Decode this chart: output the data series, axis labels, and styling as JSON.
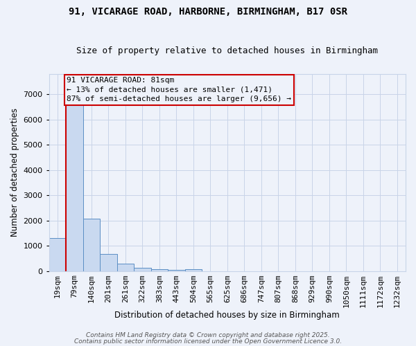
{
  "title1": "91, VICARAGE ROAD, HARBORNE, BIRMINGHAM, B17 0SR",
  "title2": "Size of property relative to detached houses in Birmingham",
  "xlabel": "Distribution of detached houses by size in Birmingham",
  "ylabel": "Number of detached properties",
  "categories": [
    "19sqm",
    "79sqm",
    "140sqm",
    "201sqm",
    "261sqm",
    "322sqm",
    "383sqm",
    "443sqm",
    "504sqm",
    "565sqm",
    "625sqm",
    "686sqm",
    "747sqm",
    "807sqm",
    "868sqm",
    "929sqm",
    "990sqm",
    "1050sqm",
    "1111sqm",
    "1172sqm",
    "1232sqm"
  ],
  "values": [
    1320,
    6650,
    2090,
    670,
    300,
    130,
    80,
    55,
    70,
    0,
    0,
    0,
    0,
    0,
    0,
    0,
    0,
    0,
    0,
    0,
    0
  ],
  "bar_color": "#c9d9f0",
  "bar_edge_color": "#5b8ec4",
  "grid_color": "#c8d4e8",
  "bg_color": "#eef2fa",
  "red_line_x": 0.5,
  "red_line_color": "#cc0000",
  "annotation_text": "91 VICARAGE ROAD: 81sqm\n← 13% of detached houses are smaller (1,471)\n87% of semi-detached houses are larger (9,656) →",
  "annotation_box_color": "#cc0000",
  "annotation_text_color": "#000000",
  "footer1": "Contains HM Land Registry data © Crown copyright and database right 2025.",
  "footer2": "Contains public sector information licensed under the Open Government Licence 3.0.",
  "ylim": [
    0,
    7800
  ],
  "yticks": [
    0,
    1000,
    2000,
    3000,
    4000,
    5000,
    6000,
    7000
  ],
  "title1_fontsize": 10,
  "title2_fontsize": 9,
  "xlabel_fontsize": 8.5,
  "ylabel_fontsize": 8.5,
  "tick_fontsize": 8,
  "annotation_fontsize": 8,
  "footer_fontsize": 6.5
}
